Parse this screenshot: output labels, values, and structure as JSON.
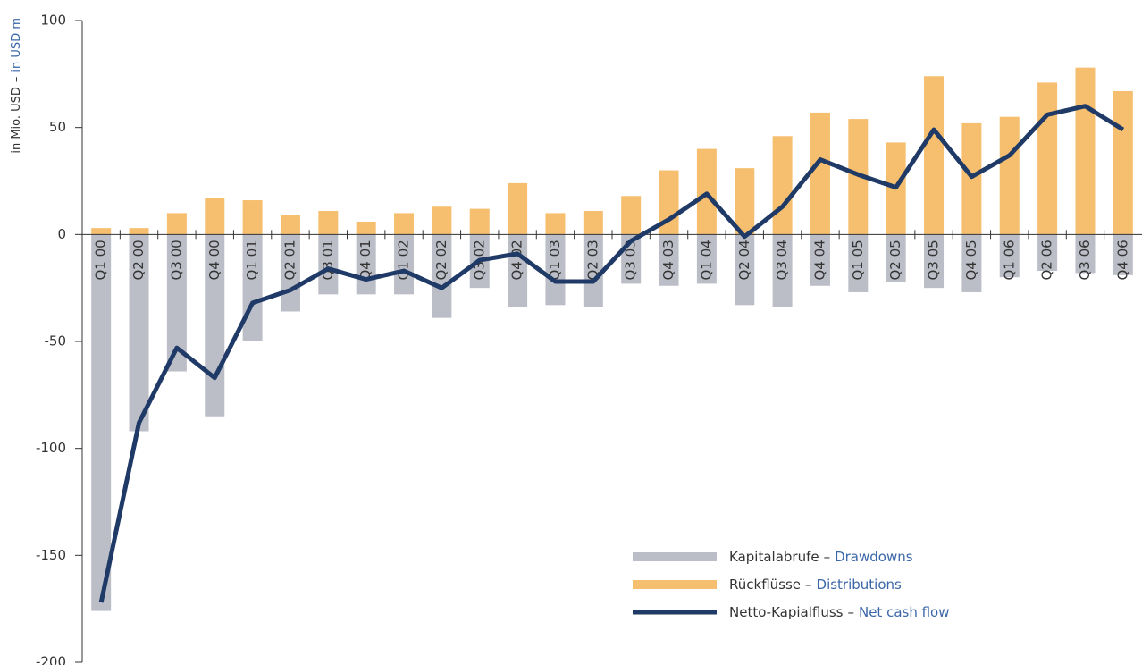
{
  "chart_data": {
    "type": "bar_line",
    "ylabel": "in Mio. USD",
    "ylabel_en": "in USD m",
    "separator": "–",
    "categories": [
      "Q1 00",
      "Q2 00",
      "Q3 00",
      "Q4 00",
      "Q1 01",
      "Q2 01",
      "Q3 01",
      "Q4 01",
      "Q1 02",
      "Q2 02",
      "Q3 02",
      "Q4 02",
      "Q1 03",
      "Q2 03",
      "Q3 03",
      "Q4 03",
      "Q1 04",
      "Q2 04",
      "Q3 04",
      "Q4 04",
      "Q1 05",
      "Q2 05",
      "Q3 05",
      "Q4 05",
      "Q1 06",
      "Q2 06",
      "Q3 06",
      "Q4 06"
    ],
    "series": [
      {
        "name": "Kapitalabrufe",
        "name_en": "Drawdowns",
        "kind": "bar",
        "color": "#bcbec7",
        "values": [
          -176,
          -92,
          -64,
          -85,
          -50,
          -36,
          -28,
          -28,
          -28,
          -39,
          -25,
          -34,
          -33,
          -34,
          -23,
          -24,
          -23,
          -33,
          -34,
          -24,
          -27,
          -22,
          -25,
          -27,
          -20,
          -17,
          -18,
          -19
        ]
      },
      {
        "name": "Rückflüsse",
        "name_en": "Distributions",
        "kind": "bar",
        "color": "#f6bf6f",
        "values": [
          3,
          3,
          10,
          17,
          16,
          9,
          11,
          6,
          10,
          13,
          12,
          24,
          10,
          11,
          18,
          30,
          40,
          31,
          46,
          57,
          54,
          43,
          74,
          52,
          55,
          71,
          78,
          67
        ]
      },
      {
        "name": "Netto-Kapialfluss",
        "name_en": "Net cash flow",
        "kind": "line",
        "color": "#1f3a66",
        "values": [
          -172,
          -88,
          -53,
          -67,
          -32,
          -26,
          -16,
          -21,
          -17,
          -25,
          -12,
          -9,
          -22,
          -22,
          -3,
          7,
          19,
          -1,
          13,
          35,
          28,
          22,
          49,
          27,
          37,
          56,
          60,
          49
        ]
      }
    ],
    "ylim": [
      -200,
      100
    ],
    "yticks": [
      -200,
      -150,
      -100,
      -50,
      0,
      50,
      100
    ],
    "legend": "lower right"
  }
}
